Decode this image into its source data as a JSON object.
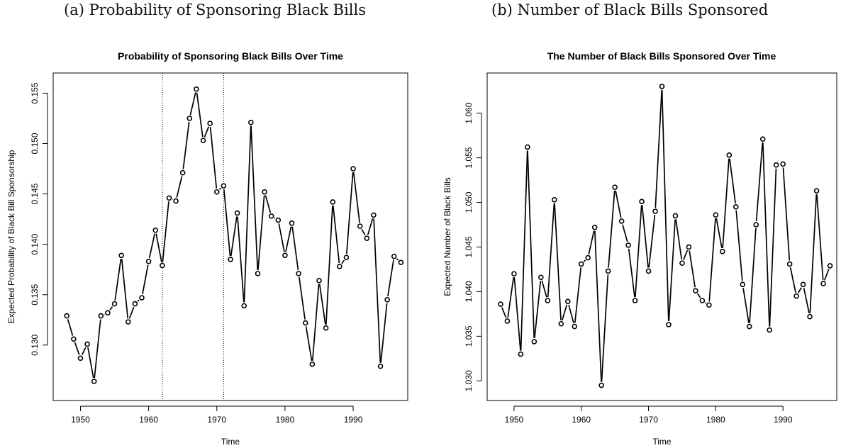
{
  "captions": {
    "a": "(a) Probability of Sponsoring Black Bills",
    "b": "(b) Number of Black Bills Sponsored"
  },
  "chart_data": [
    {
      "type": "line",
      "title": "Probability of Sponsoring Black Bills Over Time",
      "xlabel": "Time",
      "ylabel": "Expected Probability of Black Bill Sponsorship",
      "xlim": [
        1946,
        1998
      ],
      "ylim": [
        0.1245,
        0.157
      ],
      "xticks": [
        1950,
        1960,
        1970,
        1980,
        1990
      ],
      "yticks": [
        0.13,
        0.135,
        0.14,
        0.145,
        0.15,
        0.155
      ],
      "ytick_labels": [
        "0.130",
        "0.135",
        "0.140",
        "0.145",
        "0.150",
        "0.155"
      ],
      "vlines": [
        1962,
        1971
      ],
      "grid": false,
      "x": [
        1948,
        1949,
        1950,
        1951,
        1952,
        1953,
        1954,
        1955,
        1956,
        1957,
        1958,
        1959,
        1960,
        1961,
        1962,
        1963,
        1964,
        1965,
        1966,
        1967,
        1968,
        1969,
        1970,
        1971,
        1972,
        1973,
        1974,
        1975,
        1976,
        1977,
        1978,
        1979,
        1980,
        1981,
        1982,
        1983,
        1984,
        1985,
        1986,
        1987,
        1988,
        1989,
        1990,
        1991,
        1992,
        1993,
        1994,
        1995,
        1996,
        1997
      ],
      "y": [
        0.1329,
        0.1306,
        0.1287,
        0.1301,
        0.1264,
        0.1329,
        0.1332,
        0.1341,
        0.1389,
        0.1323,
        0.1341,
        0.1347,
        0.1383,
        0.1414,
        0.1379,
        0.1446,
        0.1443,
        0.1471,
        0.1525,
        0.1554,
        0.1503,
        0.152,
        0.1452,
        0.1458,
        0.1385,
        0.1431,
        0.1339,
        0.1521,
        0.1371,
        0.1452,
        0.1428,
        0.1424,
        0.1389,
        0.1421,
        0.1371,
        0.1322,
        0.1281,
        0.1364,
        0.1317,
        0.1442,
        0.1378,
        0.1387,
        0.1475,
        0.1418,
        0.1406,
        0.1429,
        0.1279,
        0.1345,
        0.1388,
        0.1382
      ]
    },
    {
      "type": "line",
      "title": "The Number of Black Bills Sponsored Over Time",
      "xlabel": "Time",
      "ylabel": "Expected Number of Black Bills",
      "xlim": [
        1946,
        1998
      ],
      "ylim": [
        1.0278,
        1.0645
      ],
      "xticks": [
        1950,
        1960,
        1970,
        1980,
        1990
      ],
      "yticks": [
        1.03,
        1.035,
        1.04,
        1.045,
        1.05,
        1.055,
        1.06
      ],
      "ytick_labels": [
        "1.030",
        "1.035",
        "1.040",
        "1.045",
        "1.050",
        "1.055",
        "1.060"
      ],
      "grid": false,
      "x": [
        1948,
        1949,
        1950,
        1951,
        1952,
        1953,
        1954,
        1955,
        1956,
        1957,
        1958,
        1959,
        1960,
        1961,
        1962,
        1963,
        1964,
        1965,
        1966,
        1967,
        1968,
        1969,
        1970,
        1971,
        1972,
        1973,
        1974,
        1975,
        1976,
        1977,
        1978,
        1979,
        1980,
        1981,
        1982,
        1983,
        1984,
        1985,
        1986,
        1987,
        1988,
        1989,
        1990,
        1991,
        1992,
        1993,
        1994,
        1995,
        1996,
        1997
      ],
      "y": [
        1.0386,
        1.0367,
        1.042,
        1.033,
        1.0562,
        1.0344,
        1.0416,
        1.039,
        1.0503,
        1.0364,
        1.0389,
        1.0361,
        1.0431,
        1.0438,
        1.0472,
        1.0295,
        1.0423,
        1.0517,
        1.0479,
        1.0452,
        1.039,
        1.0501,
        1.0423,
        1.049,
        1.063,
        1.0363,
        1.0485,
        1.0432,
        1.045,
        1.0401,
        1.039,
        1.0385,
        1.0486,
        1.0445,
        1.0553,
        1.0495,
        1.0408,
        1.0361,
        1.0475,
        1.0571,
        1.0357,
        1.0542,
        1.0543,
        1.0431,
        1.0395,
        1.0408,
        1.0372,
        1.0513,
        1.0409,
        1.0429
      ]
    }
  ]
}
